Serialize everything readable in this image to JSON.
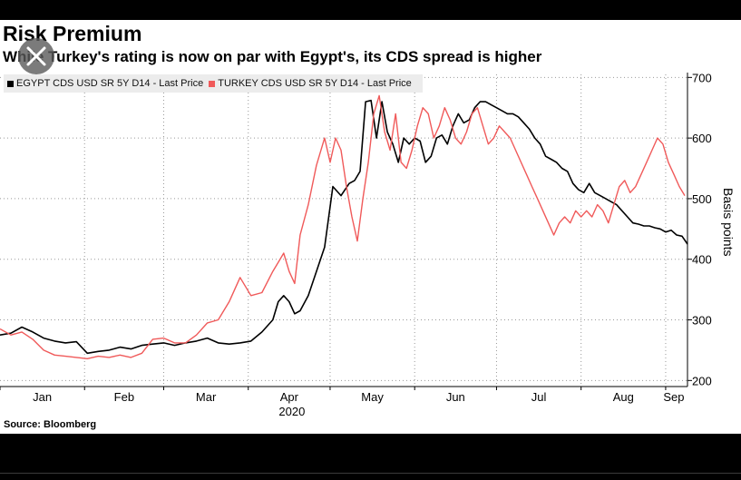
{
  "title": "Risk Premium",
  "subtitle": "While Turkey's rating is now on par with Egypt's, its CDS spread is higher",
  "source": "Source: Bloomberg",
  "chart_data": {
    "type": "line",
    "ylabel": "Basis points",
    "year_label": "2020",
    "ylim": [
      190,
      705
    ],
    "yticks": [
      200,
      300,
      400,
      500,
      600,
      700
    ],
    "months": [
      "Jan",
      "Feb",
      "Mar",
      "Apr",
      "May",
      "Jun",
      "Jul",
      "Aug",
      "Sep"
    ],
    "x_unit": "day of year 2020",
    "xlim": [
      1,
      253
    ],
    "grid": true,
    "legend_position": "top-left",
    "series": [
      {
        "name": "EGYPT CDS USD SR 5Y D14 - Last Price",
        "color": "#000000",
        "points": [
          [
            1,
            275
          ],
          [
            5,
            278
          ],
          [
            9,
            288
          ],
          [
            13,
            280
          ],
          [
            17,
            270
          ],
          [
            21,
            265
          ],
          [
            25,
            262
          ],
          [
            29,
            264
          ],
          [
            33,
            245
          ],
          [
            37,
            248
          ],
          [
            41,
            250
          ],
          [
            45,
            255
          ],
          [
            49,
            252
          ],
          [
            53,
            258
          ],
          [
            57,
            260
          ],
          [
            61,
            262
          ],
          [
            65,
            258
          ],
          [
            69,
            262
          ],
          [
            73,
            265
          ],
          [
            77,
            270
          ],
          [
            81,
            262
          ],
          [
            85,
            260
          ],
          [
            89,
            262
          ],
          [
            93,
            265
          ],
          [
            97,
            280
          ],
          [
            101,
            300
          ],
          [
            103,
            330
          ],
          [
            105,
            340
          ],
          [
            107,
            330
          ],
          [
            109,
            310
          ],
          [
            111,
            315
          ],
          [
            114,
            340
          ],
          [
            117,
            380
          ],
          [
            120,
            420
          ],
          [
            123,
            520
          ],
          [
            126,
            505
          ],
          [
            129,
            525
          ],
          [
            131,
            530
          ],
          [
            133,
            545
          ],
          [
            135,
            660
          ],
          [
            137,
            662
          ],
          [
            139,
            600
          ],
          [
            141,
            660
          ],
          [
            143,
            610
          ],
          [
            145,
            590
          ],
          [
            147,
            560
          ],
          [
            149,
            600
          ],
          [
            151,
            590
          ],
          [
            153,
            600
          ],
          [
            155,
            595
          ],
          [
            157,
            560
          ],
          [
            159,
            570
          ],
          [
            161,
            600
          ],
          [
            163,
            605
          ],
          [
            165,
            590
          ],
          [
            167,
            620
          ],
          [
            169,
            640
          ],
          [
            171,
            625
          ],
          [
            173,
            630
          ],
          [
            175,
            650
          ],
          [
            177,
            660
          ],
          [
            179,
            660
          ],
          [
            181,
            655
          ],
          [
            183,
            650
          ],
          [
            185,
            645
          ],
          [
            187,
            640
          ],
          [
            189,
            640
          ],
          [
            191,
            635
          ],
          [
            193,
            625
          ],
          [
            195,
            615
          ],
          [
            197,
            600
          ],
          [
            199,
            590
          ],
          [
            201,
            570
          ],
          [
            203,
            565
          ],
          [
            205,
            560
          ],
          [
            207,
            550
          ],
          [
            209,
            545
          ],
          [
            211,
            525
          ],
          [
            213,
            515
          ],
          [
            215,
            510
          ],
          [
            217,
            525
          ],
          [
            219,
            510
          ],
          [
            221,
            505
          ],
          [
            223,
            500
          ],
          [
            225,
            495
          ],
          [
            227,
            490
          ],
          [
            229,
            480
          ],
          [
            231,
            470
          ],
          [
            233,
            460
          ],
          [
            235,
            458
          ],
          [
            237,
            455
          ],
          [
            239,
            455
          ],
          [
            241,
            452
          ],
          [
            243,
            450
          ],
          [
            245,
            445
          ],
          [
            247,
            448
          ],
          [
            249,
            440
          ],
          [
            251,
            438
          ],
          [
            253,
            425
          ]
        ]
      },
      {
        "name": "TURKEY CDS USD SR 5Y D14 - Last Price",
        "color": "#f05a5a",
        "points": [
          [
            1,
            285
          ],
          [
            5,
            275
          ],
          [
            9,
            280
          ],
          [
            13,
            268
          ],
          [
            17,
            250
          ],
          [
            21,
            242
          ],
          [
            25,
            240
          ],
          [
            29,
            238
          ],
          [
            33,
            236
          ],
          [
            37,
            240
          ],
          [
            41,
            238
          ],
          [
            45,
            242
          ],
          [
            49,
            238
          ],
          [
            53,
            245
          ],
          [
            57,
            268
          ],
          [
            61,
            270
          ],
          [
            65,
            262
          ],
          [
            69,
            262
          ],
          [
            73,
            275
          ],
          [
            77,
            295
          ],
          [
            81,
            300
          ],
          [
            85,
            330
          ],
          [
            89,
            370
          ],
          [
            93,
            340
          ],
          [
            97,
            345
          ],
          [
            101,
            380
          ],
          [
            103,
            395
          ],
          [
            105,
            410
          ],
          [
            107,
            380
          ],
          [
            109,
            360
          ],
          [
            111,
            440
          ],
          [
            114,
            490
          ],
          [
            117,
            555
          ],
          [
            120,
            600
          ],
          [
            122,
            560
          ],
          [
            124,
            600
          ],
          [
            126,
            580
          ],
          [
            128,
            520
          ],
          [
            130,
            470
          ],
          [
            132,
            430
          ],
          [
            134,
            500
          ],
          [
            136,
            560
          ],
          [
            138,
            640
          ],
          [
            140,
            670
          ],
          [
            142,
            610
          ],
          [
            144,
            580
          ],
          [
            146,
            640
          ],
          [
            148,
            560
          ],
          [
            150,
            550
          ],
          [
            152,
            580
          ],
          [
            154,
            620
          ],
          [
            156,
            650
          ],
          [
            158,
            640
          ],
          [
            160,
            600
          ],
          [
            162,
            620
          ],
          [
            164,
            650
          ],
          [
            166,
            630
          ],
          [
            168,
            600
          ],
          [
            170,
            590
          ],
          [
            172,
            610
          ],
          [
            174,
            640
          ],
          [
            176,
            650
          ],
          [
            178,
            620
          ],
          [
            180,
            590
          ],
          [
            182,
            600
          ],
          [
            184,
            620
          ],
          [
            186,
            610
          ],
          [
            188,
            600
          ],
          [
            190,
            580
          ],
          [
            192,
            560
          ],
          [
            194,
            540
          ],
          [
            196,
            520
          ],
          [
            198,
            500
          ],
          [
            200,
            480
          ],
          [
            202,
            460
          ],
          [
            204,
            440
          ],
          [
            206,
            460
          ],
          [
            208,
            470
          ],
          [
            210,
            460
          ],
          [
            212,
            480
          ],
          [
            214,
            470
          ],
          [
            216,
            480
          ],
          [
            218,
            470
          ],
          [
            220,
            490
          ],
          [
            222,
            480
          ],
          [
            224,
            460
          ],
          [
            226,
            490
          ],
          [
            228,
            520
          ],
          [
            230,
            530
          ],
          [
            232,
            510
          ],
          [
            234,
            520
          ],
          [
            236,
            540
          ],
          [
            238,
            560
          ],
          [
            240,
            580
          ],
          [
            242,
            600
          ],
          [
            244,
            590
          ],
          [
            246,
            560
          ],
          [
            248,
            540
          ],
          [
            250,
            520
          ],
          [
            252,
            505
          ]
        ]
      }
    ]
  }
}
